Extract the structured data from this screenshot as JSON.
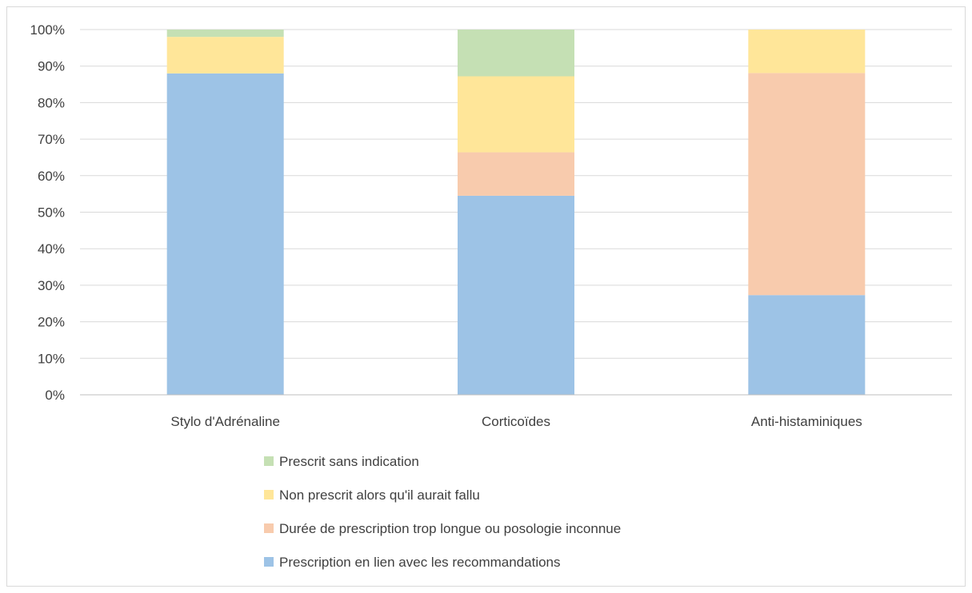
{
  "chart_data": {
    "type": "bar",
    "stacked": true,
    "percent": true,
    "categories": [
      "Stylo d'Adrénaline",
      "Corticoïdes",
      "Anti-histaminiques"
    ],
    "series": [
      {
        "name": "Prescription en lien avec les recommandations",
        "color": "#9dc3e6",
        "values": [
          88,
          54.5,
          27.3
        ]
      },
      {
        "name": "Durée de prescription trop longue ou posologie inconnue",
        "color": "#f8cbad",
        "values": [
          0,
          11.9,
          60.8
        ]
      },
      {
        "name": "Non prescrit alors qu'il aurait fallu",
        "color": "#ffe699",
        "values": [
          10,
          20.8,
          11.9
        ]
      },
      {
        "name": "Prescrit sans indication",
        "color": "#c5e0b4",
        "values": [
          2,
          12.8,
          0
        ]
      }
    ],
    "y_ticks": [
      "0%",
      "10%",
      "20%",
      "30%",
      "40%",
      "50%",
      "60%",
      "70%",
      "80%",
      "90%",
      "100%"
    ],
    "ylim": [
      0,
      100
    ],
    "grid": true,
    "legend_position": "bottom",
    "legend_order": [
      3,
      2,
      1,
      0
    ]
  }
}
